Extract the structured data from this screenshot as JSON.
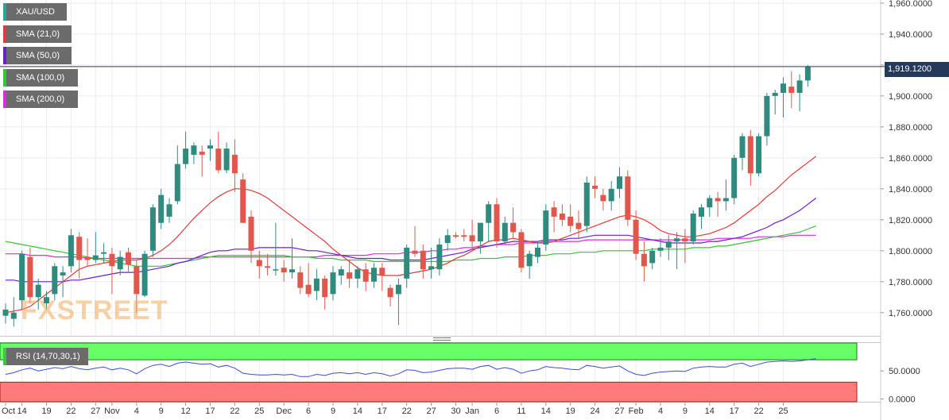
{
  "instrument": "XAU/USD",
  "legend": [
    {
      "label": "XAU/USD",
      "color": "#26a69a"
    },
    {
      "label": "SMA (21,0)",
      "color": "#e53935"
    },
    {
      "label": "SMA (50,0)",
      "color": "#6a1fd1"
    },
    {
      "label": "SMA (100,0)",
      "color": "#32c832"
    },
    {
      "label": "SMA (200,0)",
      "color": "#e028e0"
    }
  ],
  "last_price_label": "1,919.1200",
  "watermark": "FXSTREET",
  "rsi_label": "RSI (14,70,30,1)",
  "colors": {
    "up": "#2e8b7e",
    "down": "#e2574c",
    "overbought": "#66ff66",
    "oversold": "#ff7b7b",
    "rsi_line": "#3a4fd8",
    "last_line": "#25395a"
  },
  "chart_data": {
    "type": "candlestick",
    "ylim": [
      1745,
      1962
    ],
    "y_ticks": [
      "1,960.0000",
      "1,940.0000",
      "1,920.0000",
      "1,900.0000",
      "1,880.0000",
      "1,860.0000",
      "1,840.0000",
      "1,820.0000",
      "1,800.0000",
      "1,780.0000",
      "1,760.0000"
    ],
    "y_tick_values": [
      1960,
      1940,
      1920,
      1900,
      1880,
      1860,
      1840,
      1820,
      1800,
      1780,
      1760
    ],
    "x_labels": [
      "Oct",
      "14",
      "19",
      "22",
      "27",
      "Nov",
      "4",
      "9",
      "12",
      "17",
      "22",
      "25",
      "Dec",
      "6",
      "9",
      "14",
      "17",
      "22",
      "27",
      "30",
      "Jan",
      "6",
      "11",
      "14",
      "19",
      "24",
      "27",
      "Feb",
      "4",
      "9",
      "14",
      "17",
      "22",
      "25"
    ],
    "x_label_slots": [
      0,
      2,
      5,
      8,
      11,
      13,
      16,
      19,
      22,
      25,
      28,
      31,
      34,
      37,
      40,
      43,
      46,
      49,
      52,
      55,
      57,
      60,
      63,
      66,
      69,
      72,
      75,
      77,
      80,
      83,
      86,
      89,
      92,
      95
    ],
    "candles": [
      {
        "o": 1758,
        "h": 1766,
        "l": 1753,
        "c": 1762
      },
      {
        "o": 1756,
        "h": 1770,
        "l": 1751,
        "c": 1760
      },
      {
        "o": 1768,
        "h": 1800,
        "l": 1762,
        "c": 1798
      },
      {
        "o": 1796,
        "h": 1802,
        "l": 1766,
        "c": 1770
      },
      {
        "o": 1770,
        "h": 1782,
        "l": 1762,
        "c": 1778
      },
      {
        "o": 1766,
        "h": 1774,
        "l": 1762,
        "c": 1770
      },
      {
        "o": 1772,
        "h": 1792,
        "l": 1768,
        "c": 1790
      },
      {
        "o": 1784,
        "h": 1790,
        "l": 1770,
        "c": 1786
      },
      {
        "o": 1790,
        "h": 1814,
        "l": 1786,
        "c": 1810
      },
      {
        "o": 1809,
        "h": 1812,
        "l": 1782,
        "c": 1794
      },
      {
        "o": 1796,
        "h": 1808,
        "l": 1790,
        "c": 1794
      },
      {
        "o": 1794,
        "h": 1812,
        "l": 1792,
        "c": 1797
      },
      {
        "o": 1798,
        "h": 1805,
        "l": 1792,
        "c": 1799
      },
      {
        "o": 1798,
        "h": 1802,
        "l": 1772,
        "c": 1790
      },
      {
        "o": 1788,
        "h": 1800,
        "l": 1784,
        "c": 1796
      },
      {
        "o": 1799,
        "h": 1802,
        "l": 1786,
        "c": 1791
      },
      {
        "o": 1790,
        "h": 1794,
        "l": 1760,
        "c": 1772
      },
      {
        "o": 1771,
        "h": 1800,
        "l": 1770,
        "c": 1798
      },
      {
        "o": 1800,
        "h": 1830,
        "l": 1796,
        "c": 1828
      },
      {
        "o": 1818,
        "h": 1840,
        "l": 1814,
        "c": 1836
      },
      {
        "o": 1822,
        "h": 1834,
        "l": 1818,
        "c": 1830
      },
      {
        "o": 1832,
        "h": 1868,
        "l": 1830,
        "c": 1856
      },
      {
        "o": 1856,
        "h": 1877,
        "l": 1853,
        "c": 1866
      },
      {
        "o": 1862,
        "h": 1870,
        "l": 1856,
        "c": 1868
      },
      {
        "o": 1864,
        "h": 1868,
        "l": 1848,
        "c": 1862
      },
      {
        "o": 1866,
        "h": 1872,
        "l": 1858,
        "c": 1868
      },
      {
        "o": 1866,
        "h": 1877,
        "l": 1850,
        "c": 1852
      },
      {
        "o": 1852,
        "h": 1870,
        "l": 1850,
        "c": 1866
      },
      {
        "o": 1862,
        "h": 1872,
        "l": 1838,
        "c": 1850
      },
      {
        "o": 1846,
        "h": 1850,
        "l": 1818,
        "c": 1818
      },
      {
        "o": 1822,
        "h": 1826,
        "l": 1792,
        "c": 1800
      },
      {
        "o": 1794,
        "h": 1800,
        "l": 1782,
        "c": 1790
      },
      {
        "o": 1790,
        "h": 1798,
        "l": 1784,
        "c": 1789
      },
      {
        "o": 1788,
        "h": 1818,
        "l": 1784,
        "c": 1788
      },
      {
        "o": 1789,
        "h": 1794,
        "l": 1780,
        "c": 1786
      },
      {
        "o": 1786,
        "h": 1808,
        "l": 1782,
        "c": 1788
      },
      {
        "o": 1786,
        "h": 1790,
        "l": 1772,
        "c": 1776
      },
      {
        "o": 1778,
        "h": 1792,
        "l": 1770,
        "c": 1772
      },
      {
        "o": 1774,
        "h": 1788,
        "l": 1768,
        "c": 1782
      },
      {
        "o": 1782,
        "h": 1784,
        "l": 1762,
        "c": 1770
      },
      {
        "o": 1772,
        "h": 1790,
        "l": 1768,
        "c": 1786
      },
      {
        "o": 1784,
        "h": 1790,
        "l": 1778,
        "c": 1788
      },
      {
        "o": 1786,
        "h": 1794,
        "l": 1776,
        "c": 1782
      },
      {
        "o": 1782,
        "h": 1790,
        "l": 1776,
        "c": 1788
      },
      {
        "o": 1788,
        "h": 1792,
        "l": 1774,
        "c": 1780
      },
      {
        "o": 1780,
        "h": 1792,
        "l": 1776,
        "c": 1789
      },
      {
        "o": 1789,
        "h": 1792,
        "l": 1774,
        "c": 1784
      },
      {
        "o": 1776,
        "h": 1778,
        "l": 1764,
        "c": 1770
      },
      {
        "o": 1772,
        "h": 1782,
        "l": 1752,
        "c": 1778
      },
      {
        "o": 1782,
        "h": 1804,
        "l": 1776,
        "c": 1802
      },
      {
        "o": 1800,
        "h": 1816,
        "l": 1796,
        "c": 1798
      },
      {
        "o": 1800,
        "h": 1804,
        "l": 1782,
        "c": 1788
      },
      {
        "o": 1788,
        "h": 1802,
        "l": 1782,
        "c": 1790
      },
      {
        "o": 1788,
        "h": 1808,
        "l": 1784,
        "c": 1804
      },
      {
        "o": 1805,
        "h": 1814,
        "l": 1800,
        "c": 1810
      },
      {
        "o": 1810,
        "h": 1812,
        "l": 1808,
        "c": 1809
      },
      {
        "o": 1810,
        "h": 1814,
        "l": 1806,
        "c": 1809
      },
      {
        "o": 1810,
        "h": 1820,
        "l": 1800,
        "c": 1806
      },
      {
        "o": 1806,
        "h": 1818,
        "l": 1798,
        "c": 1818
      },
      {
        "o": 1818,
        "h": 1832,
        "l": 1806,
        "c": 1830
      },
      {
        "o": 1830,
        "h": 1834,
        "l": 1802,
        "c": 1806
      },
      {
        "o": 1806,
        "h": 1822,
        "l": 1804,
        "c": 1818
      },
      {
        "o": 1818,
        "h": 1828,
        "l": 1808,
        "c": 1812
      },
      {
        "o": 1812,
        "h": 1814,
        "l": 1786,
        "c": 1789
      },
      {
        "o": 1790,
        "h": 1800,
        "l": 1782,
        "c": 1798
      },
      {
        "o": 1796,
        "h": 1806,
        "l": 1792,
        "c": 1802
      },
      {
        "o": 1804,
        "h": 1830,
        "l": 1800,
        "c": 1826
      },
      {
        "o": 1828,
        "h": 1832,
        "l": 1812,
        "c": 1822
      },
      {
        "o": 1824,
        "h": 1830,
        "l": 1816,
        "c": 1820
      },
      {
        "o": 1822,
        "h": 1830,
        "l": 1812,
        "c": 1816
      },
      {
        "o": 1818,
        "h": 1826,
        "l": 1808,
        "c": 1814
      },
      {
        "o": 1816,
        "h": 1848,
        "l": 1812,
        "c": 1844
      },
      {
        "o": 1842,
        "h": 1848,
        "l": 1834,
        "c": 1840
      },
      {
        "o": 1836,
        "h": 1840,
        "l": 1826,
        "c": 1832
      },
      {
        "o": 1832,
        "h": 1845,
        "l": 1826,
        "c": 1840
      },
      {
        "o": 1840,
        "h": 1854,
        "l": 1834,
        "c": 1848
      },
      {
        "o": 1848,
        "h": 1852,
        "l": 1816,
        "c": 1820
      },
      {
        "o": 1820,
        "h": 1826,
        "l": 1794,
        "c": 1798
      },
      {
        "o": 1798,
        "h": 1806,
        "l": 1780,
        "c": 1790
      },
      {
        "o": 1792,
        "h": 1802,
        "l": 1788,
        "c": 1800
      },
      {
        "o": 1800,
        "h": 1808,
        "l": 1796,
        "c": 1802
      },
      {
        "o": 1802,
        "h": 1810,
        "l": 1794,
        "c": 1806
      },
      {
        "o": 1806,
        "h": 1812,
        "l": 1788,
        "c": 1808
      },
      {
        "o": 1808,
        "h": 1814,
        "l": 1792,
        "c": 1806
      },
      {
        "o": 1806,
        "h": 1826,
        "l": 1804,
        "c": 1824
      },
      {
        "o": 1822,
        "h": 1830,
        "l": 1814,
        "c": 1828
      },
      {
        "o": 1828,
        "h": 1836,
        "l": 1822,
        "c": 1834
      },
      {
        "o": 1834,
        "h": 1838,
        "l": 1822,
        "c": 1832
      },
      {
        "o": 1832,
        "h": 1846,
        "l": 1826,
        "c": 1834
      },
      {
        "o": 1834,
        "h": 1862,
        "l": 1830,
        "c": 1860
      },
      {
        "o": 1860,
        "h": 1876,
        "l": 1852,
        "c": 1874
      },
      {
        "o": 1874,
        "h": 1878,
        "l": 1842,
        "c": 1850
      },
      {
        "o": 1850,
        "h": 1876,
        "l": 1848,
        "c": 1874
      },
      {
        "o": 1874,
        "h": 1902,
        "l": 1868,
        "c": 1900
      },
      {
        "o": 1900,
        "h": 1904,
        "l": 1888,
        "c": 1902
      },
      {
        "o": 1902,
        "h": 1912,
        "l": 1886,
        "c": 1908
      },
      {
        "o": 1906,
        "h": 1916,
        "l": 1892,
        "c": 1902
      },
      {
        "o": 1902,
        "h": 1914,
        "l": 1890,
        "c": 1910
      },
      {
        "o": 1910,
        "h": 1920,
        "l": 1906,
        "c": 1919
      }
    ],
    "sma_21": [
      1760,
      1761,
      1762,
      1764,
      1768,
      1772,
      1776,
      1780,
      1784,
      1788,
      1790,
      1791,
      1792,
      1793,
      1794,
      1794,
      1794,
      1795,
      1797,
      1800,
      1804,
      1809,
      1815,
      1821,
      1826,
      1831,
      1835,
      1838,
      1840,
      1840,
      1839,
      1837,
      1834,
      1830,
      1826,
      1822,
      1818,
      1814,
      1810,
      1806,
      1801,
      1797,
      1793,
      1789,
      1786,
      1785,
      1784,
      1784,
      1784,
      1785,
      1786,
      1787,
      1788,
      1790,
      1792,
      1795,
      1797,
      1800,
      1803,
      1806,
      1807,
      1807,
      1808,
      1807,
      1806,
      1805,
      1805,
      1806,
      1808,
      1810,
      1812,
      1814,
      1816,
      1818,
      1820,
      1822,
      1823,
      1822,
      1820,
      1817,
      1813,
      1811,
      1810,
      1809,
      1809,
      1810,
      1811,
      1813,
      1815,
      1818,
      1822,
      1826,
      1830,
      1835,
      1839,
      1844,
      1849,
      1853,
      1857,
      1861
    ],
    "sma_50": [
      1781,
      1781,
      1780,
      1780,
      1780,
      1780,
      1780,
      1780,
      1781,
      1781,
      1782,
      1783,
      1784,
      1785,
      1786,
      1786,
      1786,
      1787,
      1788,
      1789,
      1790,
      1792,
      1793,
      1795,
      1797,
      1799,
      1800,
      1800,
      1801,
      1801,
      1801,
      1802,
      1802,
      1802,
      1802,
      1802,
      1801,
      1800,
      1800,
      1799,
      1798,
      1797,
      1796,
      1795,
      1795,
      1795,
      1795,
      1794,
      1794,
      1794,
      1794,
      1794,
      1795,
      1796,
      1797,
      1798,
      1799,
      1801,
      1802,
      1803,
      1804,
      1805,
      1806,
      1806,
      1806,
      1806,
      1807,
      1807,
      1807,
      1808,
      1808,
      1809,
      1810,
      1810,
      1810,
      1810,
      1810,
      1809,
      1808,
      1807,
      1806,
      1805,
      1805,
      1805,
      1805,
      1805,
      1806,
      1806,
      1807,
      1808,
      1809,
      1811,
      1813,
      1815,
      1818,
      1820,
      1823,
      1826,
      1830,
      1834
    ],
    "sma_100": [
      1806,
      1805,
      1804,
      1803,
      1802,
      1801,
      1800,
      1799,
      1798,
      1797,
      1796,
      1795,
      1794,
      1793,
      1792,
      1791,
      1790,
      1790,
      1790,
      1790,
      1791,
      1792,
      1793,
      1794,
      1795,
      1796,
      1797,
      1797,
      1797,
      1797,
      1797,
      1797,
      1797,
      1797,
      1797,
      1796,
      1796,
      1796,
      1795,
      1795,
      1795,
      1794,
      1794,
      1794,
      1794,
      1793,
      1793,
      1793,
      1793,
      1793,
      1793,
      1793,
      1793,
      1793,
      1793,
      1794,
      1794,
      1794,
      1795,
      1795,
      1795,
      1796,
      1796,
      1796,
      1797,
      1797,
      1797,
      1798,
      1798,
      1798,
      1799,
      1799,
      1799,
      1800,
      1800,
      1800,
      1800,
      1800,
      1800,
      1801,
      1801,
      1801,
      1801,
      1801,
      1802,
      1802,
      1802,
      1803,
      1803,
      1804,
      1805,
      1806,
      1807,
      1808,
      1809,
      1810,
      1811,
      1812,
      1814,
      1816
    ],
    "sma_200": [
      1798,
      1798,
      1798,
      1797,
      1797,
      1797,
      1796,
      1796,
      1796,
      1796,
      1795,
      1795,
      1795,
      1795,
      1795,
      1795,
      1795,
      1795,
      1795,
      1795,
      1795,
      1795,
      1795,
      1795,
      1796,
      1796,
      1796,
      1796,
      1796,
      1796,
      1796,
      1796,
      1796,
      1796,
      1796,
      1796,
      1796,
      1796,
      1796,
      1797,
      1797,
      1797,
      1797,
      1797,
      1797,
      1798,
      1798,
      1798,
      1798,
      1799,
      1799,
      1799,
      1800,
      1800,
      1801,
      1801,
      1802,
      1802,
      1803,
      1803,
      1804,
      1804,
      1804,
      1805,
      1805,
      1805,
      1806,
      1806,
      1806,
      1806,
      1806,
      1807,
      1807,
      1807,
      1807,
      1807,
      1807,
      1807,
      1807,
      1807,
      1807,
      1807,
      1807,
      1807,
      1807,
      1807,
      1807,
      1808,
      1808,
      1808,
      1808,
      1808,
      1809,
      1809,
      1809,
      1809,
      1810,
      1810,
      1810,
      1810
    ],
    "rsi": {
      "ylim": [
        -5,
        100
      ],
      "y_ticks": [
        "50.0000",
        "0.0000"
      ],
      "y_tick_values": [
        50,
        0
      ],
      "overbought": 70,
      "oversold": 30,
      "values": [
        44,
        47,
        52,
        55,
        50,
        53,
        56,
        54,
        58,
        54,
        52,
        55,
        57,
        52,
        55,
        52,
        45,
        54,
        60,
        62,
        58,
        64,
        66,
        64,
        62,
        63,
        57,
        60,
        55,
        46,
        44,
        43,
        43,
        44,
        43,
        44,
        40,
        40,
        44,
        42,
        46,
        47,
        45,
        47,
        44,
        47,
        45,
        41,
        45,
        52,
        51,
        47,
        48,
        51,
        54,
        55,
        55,
        53,
        58,
        60,
        53,
        56,
        53,
        46,
        50,
        52,
        58,
        56,
        55,
        53,
        52,
        60,
        58,
        55,
        57,
        59,
        50,
        44,
        42,
        46,
        48,
        49,
        50,
        49,
        55,
        57,
        58,
        57,
        57,
        62,
        64,
        58,
        62,
        66,
        67,
        68,
        67,
        68,
        70,
        72
      ]
    }
  }
}
